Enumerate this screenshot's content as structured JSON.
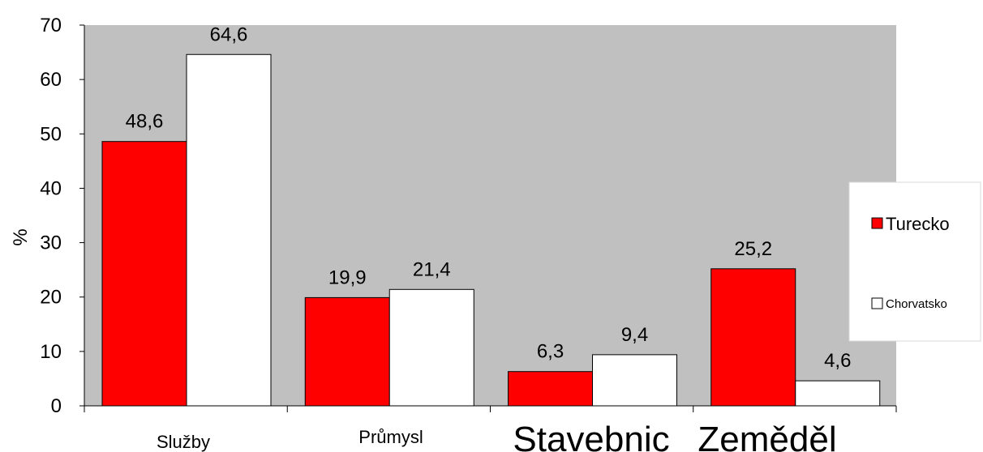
{
  "chart_data": {
    "type": "bar",
    "ylabel": "%",
    "ylim": [
      0,
      70
    ],
    "yticks": [
      "0",
      "10",
      "20",
      "30",
      "40",
      "50",
      "60",
      "70"
    ],
    "categories": [
      "Služby",
      "Průmysl",
      "Stavebnic",
      "Zeměděl"
    ],
    "series": [
      {
        "name": "Turecko",
        "values": [
          48.6,
          19.9,
          6.3,
          25.2
        ],
        "labels": [
          "48,6",
          "19,9",
          "6,3",
          "25,2"
        ],
        "color": "#ff0000"
      },
      {
        "name": "Chorvatsko",
        "values": [
          64.6,
          21.4,
          9.4,
          4.6
        ],
        "labels": [
          "64,6",
          "21,4",
          "9,4",
          "4,6"
        ],
        "color": "#ffffff"
      }
    ],
    "plot_background": "#c0c0c0",
    "grid": false,
    "legend_position": "right"
  }
}
